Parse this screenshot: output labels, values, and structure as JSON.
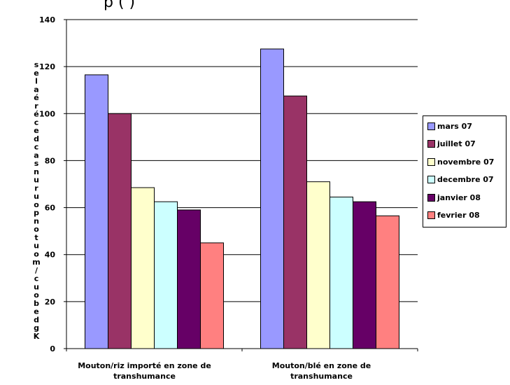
{
  "chart_data": {
    "type": "bar",
    "title": "p                  (                               )",
    "ylabel": "Kg de bouc/mouton pour un sac de céréales",
    "categories": [
      "Mouton/riz importé en zone de transhumance",
      "Mouton/blé en zone de transhumance"
    ],
    "series": [
      {
        "name": "mars 07",
        "color": "#9999FF",
        "values": [
          116.5,
          127.5
        ]
      },
      {
        "name": "juillet 07",
        "color": "#993366",
        "values": [
          100,
          107.5
        ]
      },
      {
        "name": "novembre 07",
        "color": "#FFFFCC",
        "values": [
          68.5,
          71
        ]
      },
      {
        "name": "decembre 07",
        "color": "#CCFFFF",
        "values": [
          62.5,
          64.5
        ]
      },
      {
        "name": "janvier 08",
        "color": "#660066",
        "values": [
          59,
          62.5
        ]
      },
      {
        "name": "fevrier 08",
        "color": "#FF8080",
        "values": [
          45,
          56.5
        ]
      }
    ],
    "ylim": [
      0,
      140
    ],
    "yticks": [
      "0",
      "20",
      "40",
      "60",
      "80",
      "100",
      "120",
      "140"
    ],
    "grid": true,
    "legend_position": "right"
  }
}
